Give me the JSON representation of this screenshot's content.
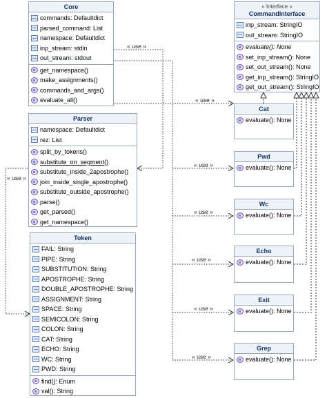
{
  "classes": {
    "core": {
      "name": "Core",
      "fields": [
        "commands: Defaultdict",
        "parsed_command: List",
        "namespace: Defaultdict",
        "inp_stream: stdin",
        "out_stream: stdout"
      ],
      "methods": [
        "get_namespace()",
        "make_assignments()",
        "commands_and_args()",
        "evaluate_all()"
      ]
    },
    "parser": {
      "name": "Parser",
      "fields": [
        "namespace: Defaultdict",
        "rez: List"
      ],
      "methods": [
        "split_by_tokens()",
        "substitute_on_segment()",
        "substitute_inside_2apostrophe()",
        "join_inside_single_apostrophe()",
        "substitute_outside_apostrophe()",
        "parse()",
        "get_parsed()",
        "get_namespace()"
      ]
    },
    "token": {
      "name": "Token",
      "fields": [
        "FAIL: String",
        "PIPE: String",
        "SUBSTITUTION: String",
        "APOSTROPHE: String",
        "DOUBLE_APOSTROPHE: String",
        "ASSIGNMENT: String",
        "SPACE: String",
        "SEMICOLON: String",
        "COLON: String",
        "CAT: String",
        "ECHO: String",
        "WC: String",
        "PWD: String"
      ],
      "methods": [
        "find(): Enum",
        "val(): String"
      ]
    },
    "command_interface": {
      "stereotype": "« Interface »",
      "name": "CommandInterface",
      "fields": [
        "inp_stream: StringIO",
        "out_stream: StringIO"
      ],
      "methods": [
        "evaluate(): None",
        "set_inp_stream(): None",
        "set_out_stream(): None",
        "get_inp_stream(): StringIO",
        "get_out_stream(): StringIO"
      ]
    },
    "cat": {
      "name": "Cat",
      "methods": [
        "evaluate(): None"
      ]
    },
    "pwd": {
      "name": "Pwd",
      "methods": [
        "evaluate(): None"
      ]
    },
    "wc": {
      "name": "Wc",
      "methods": [
        "evaluate(): None"
      ]
    },
    "echo": {
      "name": "Echo",
      "methods": [
        "evaluate(): None"
      ]
    },
    "exit": {
      "name": "Exit",
      "methods": [
        "evaluate(): None"
      ]
    },
    "grep": {
      "name": "Grep",
      "methods": [
        "evaluate(): None"
      ]
    }
  },
  "edge_label": "« use »",
  "colors": {
    "border": "#9aa7b8",
    "header_bg": "#eef3fa",
    "title": "#12315e",
    "edge": "#333333"
  }
}
